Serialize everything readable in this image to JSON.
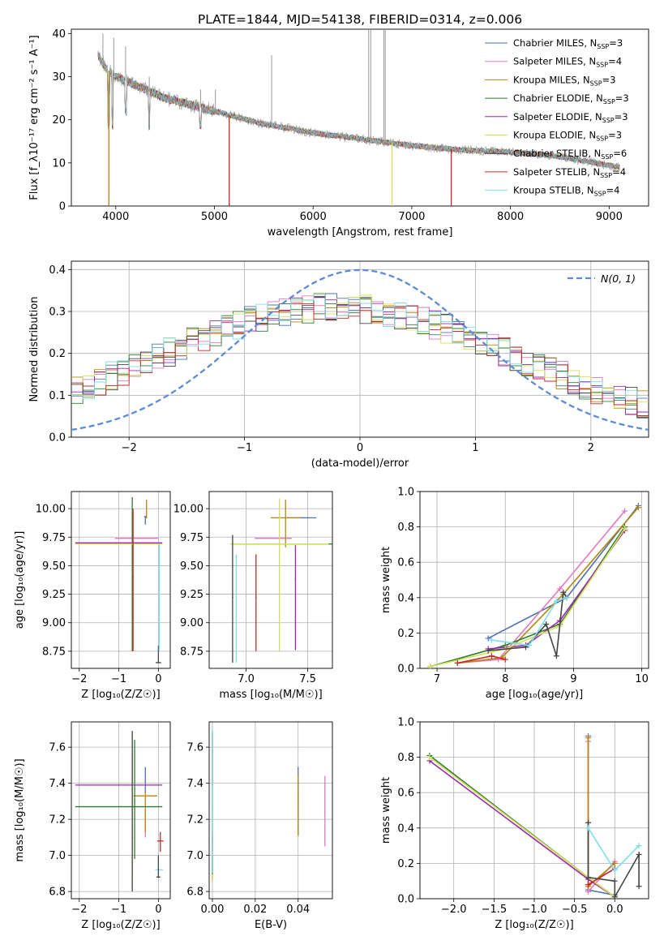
{
  "title": "PLATE=1844, MJD=54138, FIBERID=0314, z=0.006",
  "series_colors": {
    "chabrier_miles": "#4c72b0",
    "salpeter_miles": "#e377c2",
    "kroupa_miles": "#b8860b",
    "chabrier_elodie": "#2e7d32",
    "salpeter_elodie": "#9c27b0",
    "kroupa_elodie": "#d4e157",
    "chabrier_stelib": "#444444",
    "salpeter_stelib": "#c62828",
    "kroupa_stelib": "#80deea",
    "data": "#999999",
    "normal": "#5b8bd9"
  },
  "chart_data": [
    {
      "id": "spectrum",
      "type": "line",
      "xlabel": "wavelength [Angstrom, rest frame]",
      "ylabel": "Flux [f_λ10⁻¹⁷ erg cm⁻² s⁻¹ A⁻¹]",
      "xlim": [
        3550,
        9400
      ],
      "ylim": [
        0,
        41
      ],
      "xticks": [
        4000,
        5000,
        6000,
        7000,
        8000,
        9000
      ],
      "yticks": [
        0,
        10,
        20,
        30,
        40
      ],
      "grid": false,
      "legend_position": "upper-right",
      "legend": [
        {
          "label": "Chabrier MILES, N",
          "sub": "SSP",
          "tail": "=3",
          "color_key": "chabrier_miles"
        },
        {
          "label": "Salpeter MILES, N",
          "sub": "SSP",
          "tail": "=4",
          "color_key": "salpeter_miles"
        },
        {
          "label": "Kroupa MILES, N",
          "sub": "SSP",
          "tail": "=3",
          "color_key": "kroupa_miles"
        },
        {
          "label": "Chabrier ELODIE, N",
          "sub": "SSP",
          "tail": "=3",
          "color_key": "chabrier_elodie"
        },
        {
          "label": "Salpeter ELODIE, N",
          "sub": "SSP",
          "tail": "=3",
          "color_key": "salpeter_elodie"
        },
        {
          "label": "Kroupa ELODIE, N",
          "sub": "SSP",
          "tail": "=3",
          "color_key": "kroupa_elodie"
        },
        {
          "label": "Chabrier STELIB, N",
          "sub": "SSP",
          "tail": "=6",
          "color_key": "chabrier_stelib"
        },
        {
          "label": "Salpeter STELIB, N",
          "sub": "SSP",
          "tail": "=4",
          "color_key": "salpeter_stelib"
        },
        {
          "label": "Kroupa STELIB, N",
          "sub": "SSP",
          "tail": "=4",
          "color_key": "kroupa_stelib"
        }
      ],
      "continuum": [
        [
          3820,
          35
        ],
        [
          3900,
          32
        ],
        [
          4000,
          30
        ],
        [
          4200,
          28
        ],
        [
          4500,
          25
        ],
        [
          5000,
          22
        ],
        [
          5500,
          19
        ],
        [
          6000,
          17
        ],
        [
          6500,
          15.5
        ],
        [
          7000,
          14
        ],
        [
          7500,
          13
        ],
        [
          8000,
          12.5
        ],
        [
          8500,
          11.5
        ],
        [
          9100,
          9
        ]
      ],
      "drops": [
        {
          "x": 3930,
          "color_key": "kroupa_miles"
        },
        {
          "x": 5150,
          "color_key": "salpeter_stelib"
        },
        {
          "x": 6800,
          "color_key": "kroupa_elodie"
        },
        {
          "x": 7400,
          "color_key": "salpeter_stelib"
        }
      ],
      "spikes": [
        [
          3870,
          40
        ],
        [
          3980,
          39
        ],
        [
          4100,
          37
        ],
        [
          4340,
          30
        ],
        [
          4860,
          27
        ],
        [
          5010,
          27
        ],
        [
          5580,
          35
        ],
        [
          6563,
          41
        ],
        [
          6584,
          41
        ],
        [
          6717,
          41
        ],
        [
          6731,
          41
        ]
      ]
    },
    {
      "id": "residuals",
      "type": "line",
      "xlabel": "(data-model)/error",
      "ylabel": "Normed distribution",
      "xlim": [
        -2.5,
        2.5
      ],
      "ylim": [
        0,
        0.42
      ],
      "xticks": [
        -2,
        -1,
        0,
        1,
        2
      ],
      "yticks": [
        0.0,
        0.1,
        0.2,
        0.3,
        0.4
      ],
      "grid": true,
      "legend_position": "upper-right",
      "normal_label": "N(0, 1)"
    },
    {
      "id": "age_vs_Z",
      "type": "scatter",
      "xlabel": "Z [log₁₀(Z/Z☉)]",
      "ylabel": "age  [log₁₀(age/yr)]",
      "xlim": [
        -2.2,
        0.3
      ],
      "ylim": [
        8.6,
        10.15
      ],
      "xticks": [
        -2,
        -1,
        0
      ],
      "yticks": [
        8.75,
        9.0,
        9.25,
        9.5,
        9.75,
        10.0
      ],
      "grid": true,
      "points": [
        {
          "color_key": "chabrier_miles",
          "x": -0.33,
          "xerr": 0.03,
          "y": 9.93,
          "yerr": [
            0.07,
            0.0
          ]
        },
        {
          "color_key": "salpeter_miles",
          "x": -0.55,
          "xerr": 0.55,
          "y": 9.74,
          "yerr": [
            0.0,
            0.0
          ]
        },
        {
          "color_key": "kroupa_miles",
          "x": -0.3,
          "xerr": 0.0,
          "y": 9.92,
          "yerr": [
            0.0,
            0.16
          ]
        },
        {
          "color_key": "chabrier_elodie",
          "x": -0.66,
          "xerr": 0.0,
          "y": 9.6,
          "yerr": [
            0.85,
            0.5
          ]
        },
        {
          "color_key": "salpeter_elodie",
          "x": -1.0,
          "xerr": 1.1,
          "y": 9.7,
          "yerr": [
            0.0,
            0.0
          ]
        },
        {
          "color_key": "kroupa_elodie",
          "x": -1.0,
          "xerr": 1.1,
          "y": 9.69,
          "yerr": [
            0.0,
            0.0
          ]
        },
        {
          "color_key": "chabrier_stelib",
          "x": 0.0,
          "xerr": 0.07,
          "y": 8.65,
          "yerr": [
            0.0,
            0.15
          ]
        },
        {
          "color_key": "salpeter_stelib",
          "x": -0.64,
          "xerr": 0.0,
          "y": 9.4,
          "yerr": [
            0.65,
            0.6
          ]
        },
        {
          "color_key": "kroupa_stelib",
          "x": 0.02,
          "xerr": 0.0,
          "y": 9.22,
          "yerr": [
            0.47,
            0.47
          ]
        }
      ]
    },
    {
      "id": "age_vs_mass",
      "type": "scatter",
      "xlabel": "mass [log₁₀(M/M☉)]",
      "ylabel": "",
      "xlim": [
        6.7,
        7.7
      ],
      "ylim": [
        8.6,
        10.15
      ],
      "xticks": [
        7.0,
        7.5
      ],
      "yticks": [
        8.75,
        9.0,
        9.25,
        9.5,
        9.75,
        10.0
      ],
      "grid": true,
      "points": [
        {
          "color_key": "chabrier_miles",
          "x": 7.45,
          "xerr": 0.12,
          "y": 9.92,
          "yerr": [
            0.0,
            0.0
          ]
        },
        {
          "color_key": "salpeter_miles",
          "x": 7.22,
          "xerr": 0.15,
          "y": 9.74,
          "yerr": [
            0.0,
            0.0
          ]
        },
        {
          "color_key": "kroupa_miles",
          "x": 7.32,
          "xerr": 0.12,
          "y": 9.92,
          "yerr": [
            0.26,
            0.16
          ]
        },
        {
          "color_key": "chabrier_elodie",
          "x": 7.3,
          "xerr": 0.4,
          "y": 9.69,
          "yerr": [
            0.0,
            0.0
          ]
        },
        {
          "color_key": "salpeter_elodie",
          "x": 7.4,
          "xerr": 0.0,
          "y": 9.38,
          "yerr": [
            0.62,
            0.3
          ]
        },
        {
          "color_key": "kroupa_elodie",
          "x": 7.27,
          "xerr": 0.4,
          "y": 9.69,
          "yerr": [
            0.94,
            0.4
          ]
        },
        {
          "color_key": "chabrier_stelib",
          "x": 6.89,
          "xerr": 0.0,
          "y": 9.22,
          "yerr": [
            0.57,
            0.55
          ]
        },
        {
          "color_key": "salpeter_stelib",
          "x": 7.08,
          "xerr": 0.0,
          "y": 9.22,
          "yerr": [
            0.47,
            0.38
          ]
        },
        {
          "color_key": "kroupa_stelib",
          "x": 6.92,
          "xerr": 0.0,
          "y": 9.1,
          "yerr": [
            0.45,
            0.5
          ]
        }
      ]
    },
    {
      "id": "weight_vs_age",
      "type": "line",
      "xlabel": "age  [log₁₀(age/yr)]",
      "ylabel": "mass weight",
      "xlim": [
        6.75,
        10.1
      ],
      "ylim": [
        0,
        1
      ],
      "xticks": [
        7,
        8,
        9,
        10
      ],
      "yticks": [
        0.0,
        0.2,
        0.4,
        0.6,
        0.8,
        1.0
      ],
      "grid": true,
      "series": [
        {
          "color_key": "chabrier_miles",
          "x": [
            7.75,
            8.9,
            9.95
          ],
          "y": [
            0.17,
            0.4,
            0.92
          ]
        },
        {
          "color_key": "salpeter_miles",
          "x": [
            7.3,
            7.9,
            8.8,
            9.75
          ],
          "y": [
            0.03,
            0.05,
            0.45,
            0.89
          ]
        },
        {
          "color_key": "kroupa_miles",
          "x": [
            7.3,
            7.95,
            8.85,
            9.95
          ],
          "y": [
            0.03,
            0.06,
            0.42,
            0.91
          ]
        },
        {
          "color_key": "chabrier_elodie",
          "x": [
            6.9,
            8.0,
            8.8,
            9.75
          ],
          "y": [
            0.01,
            0.13,
            0.25,
            0.8
          ]
        },
        {
          "color_key": "salpeter_elodie",
          "x": [
            7.75,
            8.3,
            8.8,
            9.75
          ],
          "y": [
            0.11,
            0.13,
            0.27,
            0.78
          ]
        },
        {
          "color_key": "kroupa_elodie",
          "x": [
            6.9,
            8.0,
            8.8,
            9.75
          ],
          "y": [
            0.01,
            0.11,
            0.24,
            0.79
          ]
        },
        {
          "color_key": "chabrier_stelib",
          "x": [
            7.75,
            8.3,
            8.6,
            8.75,
            8.85,
            8.9
          ],
          "y": [
            0.1,
            0.12,
            0.25,
            0.07,
            0.43,
            0.4
          ]
        },
        {
          "color_key": "salpeter_stelib",
          "x": [
            7.3,
            7.8,
            8.0
          ],
          "y": [
            0.03,
            0.07,
            0.05
          ]
        },
        {
          "color_key": "kroupa_stelib",
          "x": [
            7.8,
            8.35,
            8.75,
            8.9
          ],
          "y": [
            0.16,
            0.13,
            0.38,
            0.4
          ]
        }
      ]
    },
    {
      "id": "mass_vs_Z",
      "type": "scatter",
      "xlabel": "Z [log₁₀(Z/Z☉)]",
      "ylabel": "mass [log₁₀(M/M☉)]",
      "xlim": [
        -2.2,
        0.3
      ],
      "ylim": [
        6.76,
        7.74
      ],
      "xticks": [
        -2,
        -1,
        0
      ],
      "yticks": [
        6.8,
        7.0,
        7.2,
        7.4,
        7.6
      ],
      "grid": true,
      "points": [
        {
          "color_key": "chabrier_miles",
          "x": -0.33,
          "xerr": 0.0,
          "y": 7.35,
          "yerr": [
            0.0,
            0.14
          ]
        },
        {
          "color_key": "salpeter_miles",
          "x": -0.33,
          "xerr": 0.0,
          "y": 7.2,
          "yerr": [
            0.1,
            0.05
          ]
        },
        {
          "color_key": "kroupa_miles",
          "x": -0.33,
          "xerr": 0.3,
          "y": 7.33,
          "yerr": [
            0.2,
            0.02
          ]
        },
        {
          "color_key": "chabrier_elodie",
          "x": -1.0,
          "xerr": 1.1,
          "y": 7.27,
          "yerr": [
            0.0,
            0.0
          ]
        },
        {
          "color_key": "salpeter_elodie",
          "x": -1.0,
          "xerr": 1.1,
          "y": 7.39,
          "yerr": [
            0.0,
            0.0
          ]
        },
        {
          "color_key": "kroupa_elodie",
          "x": -0.66,
          "xerr": 0.0,
          "y": 7.27,
          "yerr": [
            0.41,
            0.4
          ]
        },
        {
          "color_key": "chabrier_stelib",
          "x": -0.66,
          "xerr": 0.0,
          "y": 7.1,
          "yerr": [
            0.3,
            0.59
          ]
        },
        {
          "color_key": "salpeter_stelib",
          "x": 0.05,
          "xerr": 0.08,
          "y": 7.08,
          "yerr": [
            0.06,
            0.05
          ]
        },
        {
          "color_key": "kroupa_stelib",
          "x": 0.02,
          "xerr": 0.1,
          "y": 6.92,
          "yerr": [
            0.0,
            0.0
          ]
        },
        {
          "color_key": "chabrier_stelib",
          "x": 0.0,
          "xerr": 0.05,
          "y": 6.88,
          "yerr": [
            0.0,
            0.12
          ]
        },
        {
          "color_key": "chabrier_elodie",
          "x": -0.6,
          "xerr": 0.0,
          "y": 7.3,
          "yerr": [
            0.32,
            0.34
          ]
        }
      ]
    },
    {
      "id": "mass_vs_ebv",
      "type": "scatter",
      "xlabel": "E(B-V)",
      "ylabel": "",
      "xlim": [
        -0.0015,
        0.056
      ],
      "ylim": [
        6.76,
        7.74
      ],
      "xticks": [
        0.0,
        0.02,
        0.04
      ],
      "yticks": [
        6.8,
        7.0,
        7.2,
        7.4,
        7.6
      ],
      "grid": true,
      "points": [
        {
          "color_key": "chabrier_miles",
          "x": 0.04,
          "xerr": 0.0,
          "y": 7.35,
          "yerr": [
            0.24,
            0.14
          ]
        },
        {
          "color_key": "salpeter_miles",
          "x": 0.0525,
          "xerr": 0.0,
          "y": 7.24,
          "yerr": [
            0.19,
            0.2
          ]
        },
        {
          "color_key": "kroupa_miles",
          "x": 0.04,
          "xerr": 0.0,
          "y": 7.3,
          "yerr": [
            0.19,
            0.15
          ]
        },
        {
          "color_key": "chabrier_elodie",
          "x": 0.0,
          "xerr": 0.0,
          "y": 7.27,
          "yerr": [
            0.41,
            0.4
          ]
        },
        {
          "color_key": "salpeter_elodie",
          "x": 0.0,
          "xerr": 0.0,
          "y": 7.39,
          "yerr": [
            0.0,
            0.3
          ]
        },
        {
          "color_key": "kroupa_elodie",
          "x": 0.0,
          "xerr": 0.0,
          "y": 7.27,
          "yerr": [
            0.41,
            0.4
          ]
        },
        {
          "color_key": "chabrier_stelib",
          "x": 0.0,
          "xerr": 0.0,
          "y": 6.9,
          "yerr": [
            0.0,
            0.1
          ]
        },
        {
          "color_key": "salpeter_stelib",
          "x": 0.0,
          "xerr": 0.0,
          "y": 7.08,
          "yerr": [
            0.06,
            0.05
          ]
        },
        {
          "color_key": "kroupa_stelib",
          "x": 0.0,
          "xerr": 0.0,
          "y": 7.2,
          "yerr": [
            0.3,
            0.5
          ]
        }
      ]
    },
    {
      "id": "weight_vs_Z",
      "type": "line",
      "xlabel": "Z [log₁₀(Z/Z☉)]",
      "ylabel": "mass weight",
      "xlim": [
        -2.42,
        0.42
      ],
      "ylim": [
        0,
        1
      ],
      "xticks": [
        -2.0,
        -1.5,
        -1.0,
        -0.5,
        0.0
      ],
      "yticks": [
        0.0,
        0.2,
        0.4,
        0.6,
        0.8,
        1.0
      ],
      "grid": true,
      "series": [
        {
          "color_key": "chabrier_miles",
          "x": [
            -0.33,
            -0.33,
            0.0
          ],
          "y": [
            0.92,
            0.05,
            0.02
          ]
        },
        {
          "color_key": "salpeter_miles",
          "x": [
            -0.33,
            -0.33,
            0.0
          ],
          "y": [
            0.89,
            0.04,
            0.21
          ]
        },
        {
          "color_key": "kroupa_miles",
          "x": [
            -0.33,
            -0.33,
            0.0
          ],
          "y": [
            0.91,
            0.07,
            0.2
          ]
        },
        {
          "color_key": "chabrier_elodie",
          "x": [
            -2.3,
            -0.33,
            0.0
          ],
          "y": [
            0.81,
            0.12,
            0.01
          ]
        },
        {
          "color_key": "salpeter_elodie",
          "x": [
            -2.3,
            -0.33,
            0.0
          ],
          "y": [
            0.78,
            0.11,
            0.01
          ]
        },
        {
          "color_key": "kroupa_elodie",
          "x": [
            -2.3,
            -0.33,
            0.0
          ],
          "y": [
            0.8,
            0.12,
            0.01
          ]
        },
        {
          "color_key": "chabrier_stelib",
          "x": [
            -0.33,
            -0.33,
            0.0,
            0.0,
            0.3,
            0.3
          ],
          "y": [
            0.43,
            0.12,
            0.1,
            0.01,
            0.25,
            0.07
          ]
        },
        {
          "color_key": "salpeter_stelib",
          "x": [
            -0.33,
            0.0
          ],
          "y": [
            0.08,
            0.17
          ]
        },
        {
          "color_key": "kroupa_stelib",
          "x": [
            -0.33,
            0.0,
            0.3
          ],
          "y": [
            0.4,
            0.16,
            0.3
          ]
        }
      ]
    }
  ]
}
